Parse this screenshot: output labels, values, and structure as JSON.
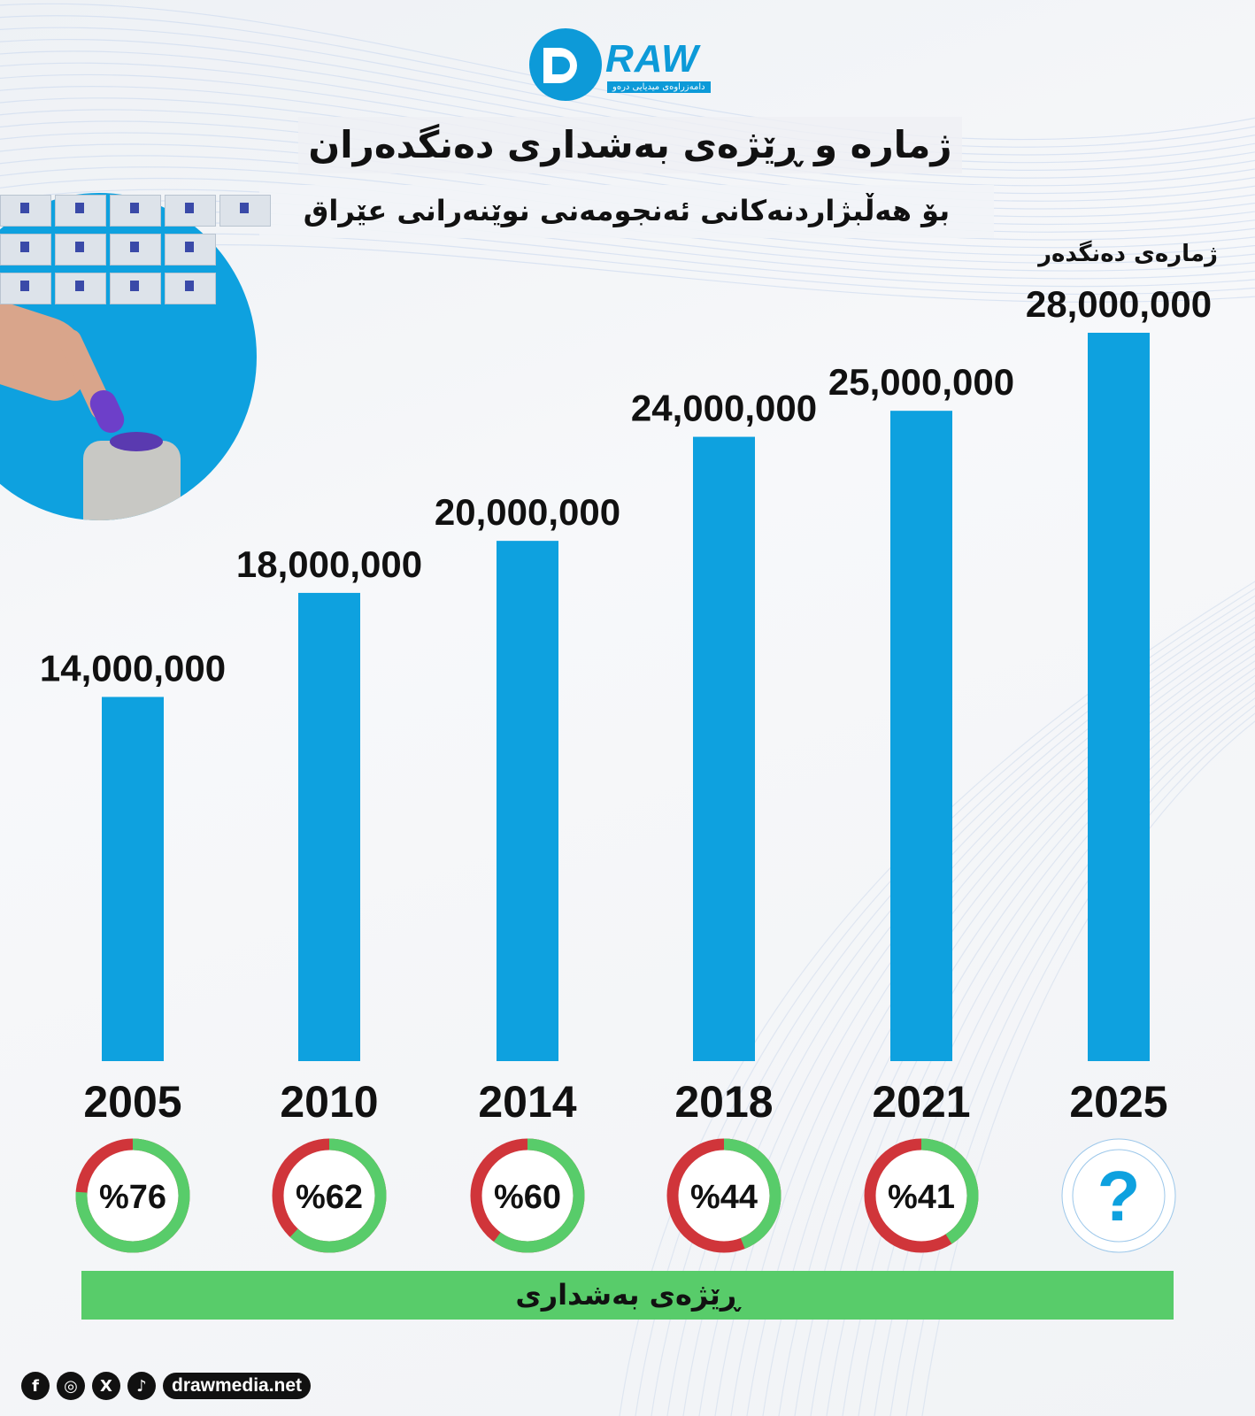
{
  "logo": {
    "text": "RAW",
    "subtitle": "دامەزراوەی میدیایی درەو"
  },
  "title": "ژمارە و ڕێژەی بەشداری دەنگدەران",
  "subtitle": "بۆ هەڵبژاردنەکانی ئەنجومەنی نوێنەرانی عێراق",
  "colors": {
    "bar": "#0ea1df",
    "participation": "#58cc6a",
    "abstain": "#d0353a",
    "question": "#0ea1df"
  },
  "chart_data": {
    "type": "bar",
    "ylabel": "ژمارەی دەنگدەر",
    "categories": [
      "2005",
      "2010",
      "2014",
      "2018",
      "2021",
      "2025"
    ],
    "values": [
      14000000,
      18000000,
      20000000,
      24000000,
      25000000,
      28000000
    ],
    "value_labels": [
      "14,000,000",
      "18,000,000",
      "20,000,000",
      "24,000,000",
      "25,000,000",
      "28,000,000"
    ],
    "ylim": [
      0,
      28000000
    ],
    "grid": false,
    "participation": {
      "label": "ڕێژەی بەشداری",
      "values": [
        76,
        62,
        60,
        44,
        41,
        null
      ],
      "value_labels": [
        "%76",
        "%62",
        "%60",
        "%44",
        "%41",
        "?"
      ]
    }
  },
  "footer": {
    "icons": [
      "facebook-icon",
      "instagram-icon",
      "x-icon",
      "tiktok-icon"
    ],
    "site": "drawmedia.net"
  }
}
